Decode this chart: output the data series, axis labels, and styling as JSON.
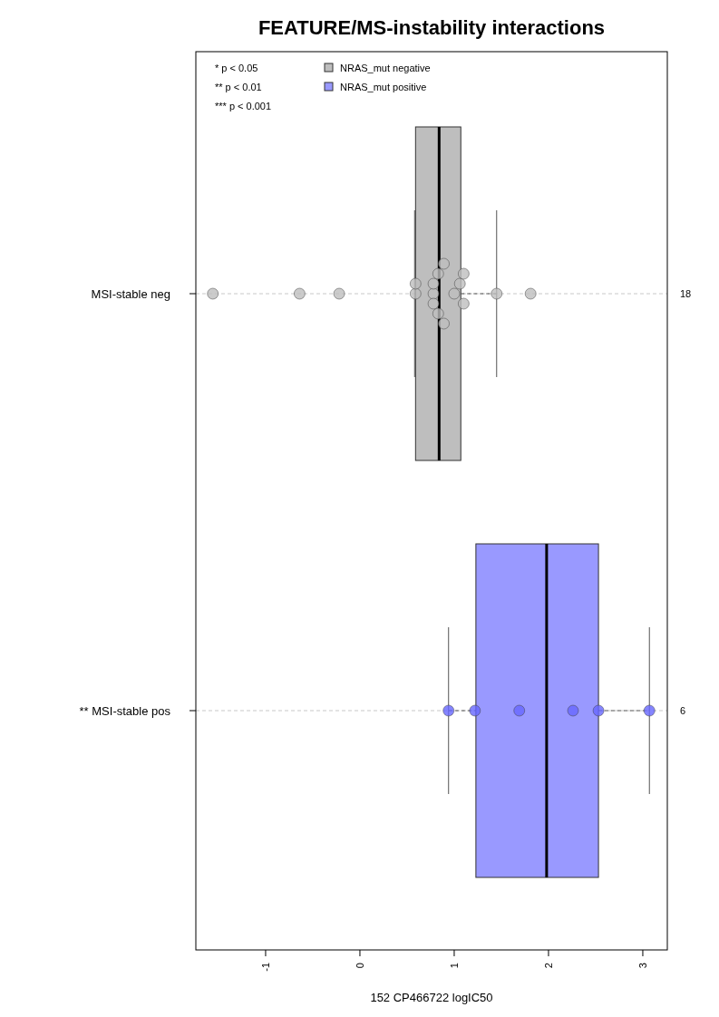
{
  "chart_data": {
    "type": "box",
    "orientation": "horizontal",
    "title": "FEATURE/MS-instability interactions",
    "xlabel": "152 CP466722 logIC50",
    "categories": [
      "MSI-stable neg",
      "** MSI-stable pos"
    ],
    "xlim": [
      -1.74,
      3.26
    ],
    "xticks": [
      -1,
      0,
      1,
      2,
      3
    ],
    "grid": "y",
    "legend": "top left",
    "marker": "circle",
    "annotations": [
      "* p < 0.05",
      "** p < 0.01",
      "*** p < 0.001",
      "18",
      "6"
    ],
    "series": [
      {
        "name": "NRAS_mut negative",
        "color": "#bebebe",
        "boxes": [
          {
            "low": 0.58,
            "q1": 0.59,
            "median": 0.84,
            "q3": 1.07,
            "high": 1.45
          },
          null
        ]
      },
      {
        "name": "NRAS_mut positive",
        "color": "#9999ff",
        "boxes": [
          null,
          {
            "low": 0.94,
            "q1": 1.23,
            "median": 1.98,
            "q3": 2.53,
            "high": 3.07
          }
        ]
      },
      {
        "type": "scatter",
        "color": "#bebebe",
        "x": [
          "MSI-stable neg",
          "MSI-stable neg",
          "MSI-stable neg",
          "MSI-stable neg",
          "MSI-stable neg",
          "MSI-stable neg",
          "MSI-stable neg",
          "MSI-stable neg",
          "MSI-stable neg",
          "MSI-stable neg",
          "MSI-stable neg",
          "MSI-stable neg",
          "MSI-stable neg",
          "MSI-stable neg",
          "MSI-stable neg",
          "MSI-stable neg",
          "MSI-stable neg",
          "MSI-stable neg"
        ],
        "values": [
          -1.56,
          -0.64,
          -0.22,
          0.59,
          0.59,
          0.78,
          0.78,
          0.78,
          0.83,
          0.83,
          0.89,
          0.89,
          1.0,
          1.06,
          1.1,
          1.1,
          1.45,
          1.81
        ]
      },
      {
        "type": "scatter",
        "color": "#6666ff",
        "x": [
          "** MSI-stable pos",
          "** MSI-stable pos",
          "** MSI-stable pos",
          "** MSI-stable pos",
          "** MSI-stable pos",
          "** MSI-stable pos"
        ],
        "values": [
          0.94,
          1.22,
          1.69,
          2.26,
          2.53,
          3.07
        ]
      }
    ]
  }
}
